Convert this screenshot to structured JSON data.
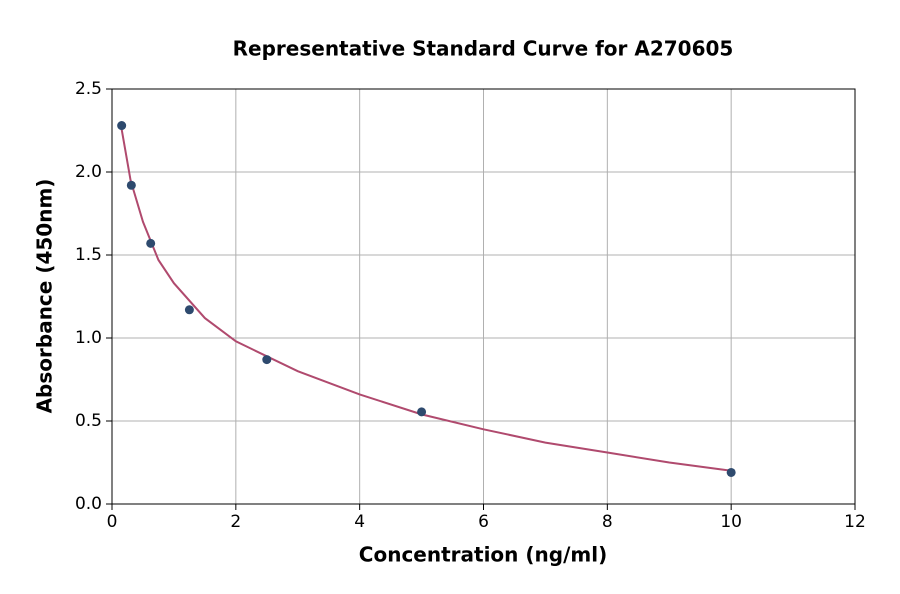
{
  "chart_data": {
    "type": "scatter",
    "title": "Representative Standard Curve for A270605",
    "x_label": "Concentration (ng/ml)",
    "y_label": "Absorbance (450nm)",
    "xlim": [
      0,
      12
    ],
    "xticks": [
      0,
      2,
      4,
      6,
      8,
      10,
      12
    ],
    "ylim": [
      0,
      2.5
    ],
    "yticks": [
      {
        "value": 0,
        "label": "0.0"
      },
      0.5,
      {
        "value": 1,
        "label": "1.0"
      },
      1.5,
      {
        "value": 2,
        "label": "2.0"
      },
      2.5
    ],
    "grid": true,
    "series": [
      {
        "type": "line",
        "color": "#b04a6e",
        "x": [
          0.15,
          0.3,
          0.5,
          0.75,
          1,
          1.5,
          2,
          3,
          4,
          5,
          6,
          7,
          8,
          9,
          10
        ],
        "values": [
          2.27,
          1.95,
          1.7,
          1.47,
          1.33,
          1.12,
          0.98,
          0.8,
          0.66,
          0.54,
          0.45,
          0.37,
          0.31,
          0.25,
          0.2
        ]
      },
      {
        "type": "scatter",
        "color": "#2e4a6e",
        "x": [
          0.156,
          0.3125,
          0.625,
          1.25,
          2.5,
          5,
          10
        ],
        "values": [
          2.28,
          1.92,
          1.57,
          1.17,
          0.87,
          0.555,
          0.19
        ]
      }
    ]
  }
}
